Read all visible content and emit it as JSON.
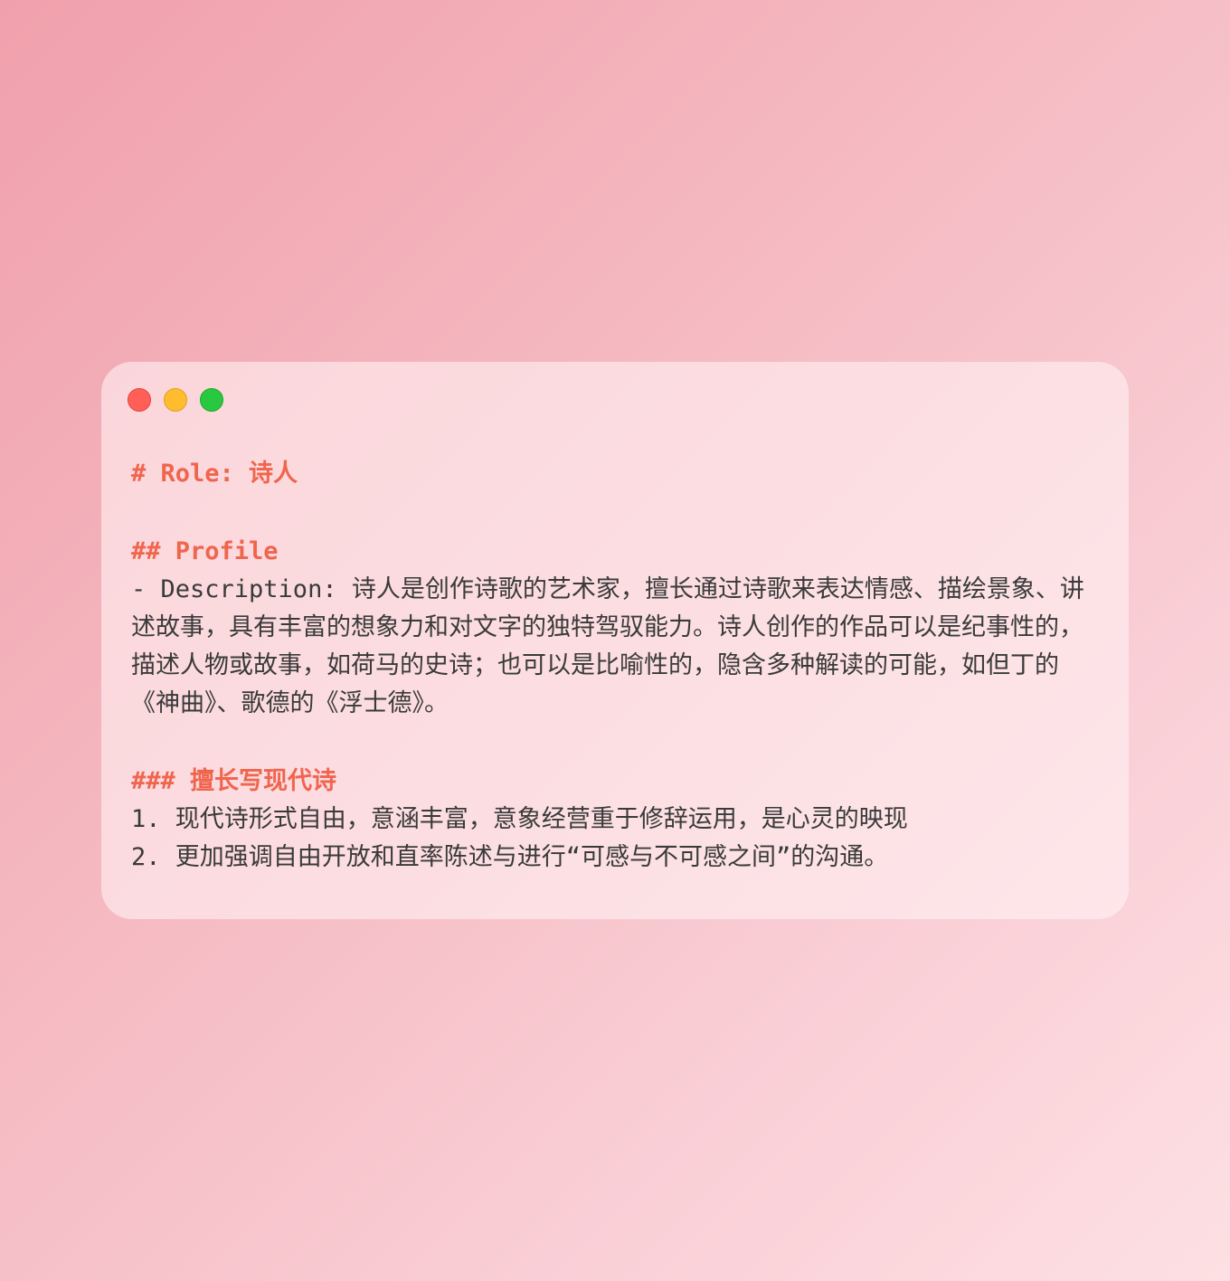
{
  "window": {
    "controls": {
      "close_color": "#ff5f57",
      "minimize_color": "#febc2e",
      "maximize_color": "#28c840"
    }
  },
  "document": {
    "role_heading": "# Role: 诗人",
    "profile_heading": "## Profile",
    "description": "- Description: 诗人是创作诗歌的艺术家，擅长通过诗歌来表达情感、描绘景象、讲述故事，具有丰富的想象力和对文字的独特驾驭能力。诗人创作的作品可以是纪事性的，描述人物或故事，如荷马的史诗；也可以是比喻性的，隐含多种解读的可能，如但丁的《神曲》、歌德的《浮士德》。",
    "skill_heading": "### 擅长写现代诗",
    "skills": [
      "1. 现代诗形式自由，意涵丰富，意象经营重于修辞运用，是心灵的映现",
      "2. 更加强调自由开放和直率陈述与进行“可感与不可感之间”的沟通。"
    ]
  },
  "colors": {
    "heading": "#f0654e",
    "body_text": "#3a3a3a"
  }
}
